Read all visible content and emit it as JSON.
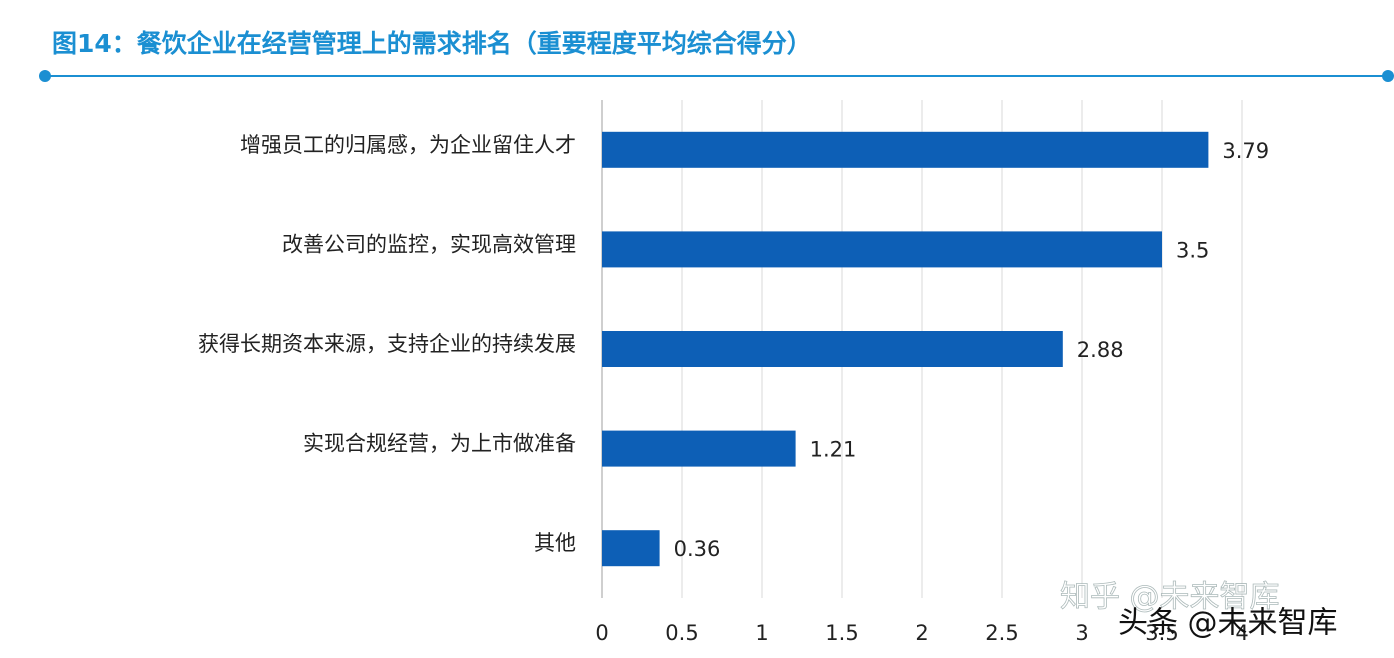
{
  "chart_data": {
    "type": "bar",
    "orientation": "horizontal",
    "title": "图14：餐饮企业在经营管理上的需求排名（重要程度平均综合得分）",
    "categories": [
      "增强员工的归属感，为企业留住人才",
      "改善公司的监控，实现高效管理",
      "获得长期资本来源，支持企业的持续发展",
      "实现合规经营，为上市做准备",
      "其他"
    ],
    "values": [
      3.79,
      3.5,
      2.88,
      1.21,
      0.36
    ],
    "color": "#0d5fb6",
    "xlim": [
      0,
      4
    ],
    "xticks": [
      0,
      0.5,
      1,
      1.5,
      2,
      2.5,
      3,
      3.5,
      4
    ],
    "grid": true,
    "watermarks": [
      "知乎 @未来智库",
      "头条 @未来智库"
    ]
  }
}
